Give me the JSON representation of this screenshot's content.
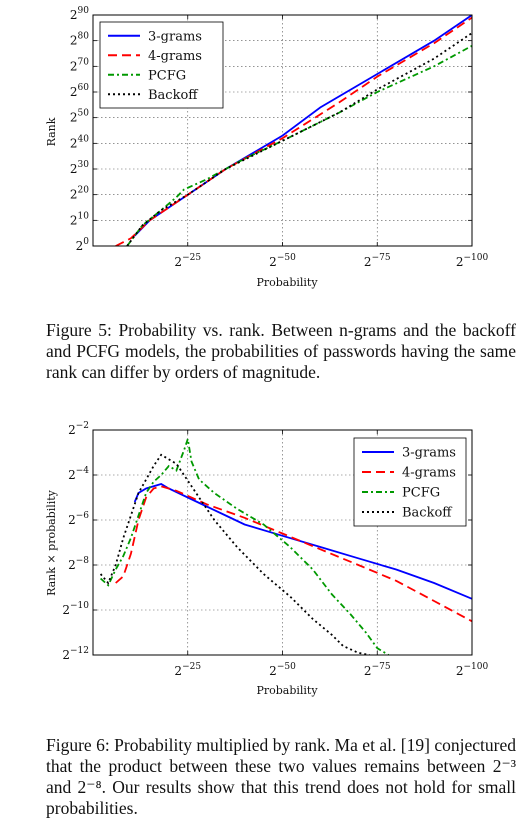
{
  "figure5": {
    "caption_label": "Figure 5:",
    "caption_text": "Probability vs. rank. Between n-grams and the backoff and PCFG models, the probabilities of passwords having the same rank can differ by orders of magnitude.",
    "chart_data": {
      "type": "line",
      "xlabel": "Probability",
      "ylabel": "Rank",
      "x_scale": "log2 (decreasing to the right)",
      "y_scale": "log2",
      "xlim_exponent": [
        0,
        -100
      ],
      "ylim_exponent": [
        0,
        90
      ],
      "x_ticks": [
        {
          "exp": -25,
          "base": "2",
          "sup": "−25"
        },
        {
          "exp": -50,
          "base": "2",
          "sup": "−50"
        },
        {
          "exp": -75,
          "base": "2",
          "sup": "−75"
        },
        {
          "exp": -100,
          "base": "2",
          "sup": "−100"
        }
      ],
      "y_ticks": [
        {
          "exp": 0,
          "base": "2",
          "sup": "0"
        },
        {
          "exp": 10,
          "base": "2",
          "sup": "10"
        },
        {
          "exp": 20,
          "base": "2",
          "sup": "20"
        },
        {
          "exp": 30,
          "base": "2",
          "sup": "30"
        },
        {
          "exp": 40,
          "base": "2",
          "sup": "40"
        },
        {
          "exp": 50,
          "base": "2",
          "sup": "50"
        },
        {
          "exp": 60,
          "base": "2",
          "sup": "60"
        },
        {
          "exp": 70,
          "base": "2",
          "sup": "70"
        },
        {
          "exp": 80,
          "base": "2",
          "sup": "80"
        },
        {
          "exp": 90,
          "base": "2",
          "sup": "90"
        }
      ],
      "grid": true,
      "legend_position": "top-left",
      "series": [
        {
          "name": "3-grams",
          "color": "#0000ff",
          "dash": "solid",
          "x": [
            -11,
            -15,
            -20,
            -25,
            -35,
            -50,
            -60,
            -75,
            -90,
            -100
          ],
          "y": [
            4,
            10,
            15,
            20,
            30,
            43,
            54,
            67,
            80,
            90
          ]
        },
        {
          "name": "4-grams",
          "color": "#ff0000",
          "dash": "dashed",
          "x": [
            -6,
            -10,
            -15,
            -25,
            -35,
            -50,
            -65,
            -75,
            -90,
            -100
          ],
          "y": [
            0,
            3,
            10,
            20,
            30,
            42,
            56,
            66,
            79,
            89
          ]
        },
        {
          "name": "PCFG",
          "color": "#009900",
          "dash": "dashdot",
          "x": [
            -9,
            -13,
            -18,
            -22,
            -24,
            -30,
            -40,
            -50,
            -65,
            -75,
            -90,
            -100
          ],
          "y": [
            0,
            8,
            14,
            19,
            22,
            26,
            34,
            41,
            52,
            60,
            70,
            78
          ]
        },
        {
          "name": "Backoff",
          "color": "#000000",
          "dash": "dotted",
          "x": [
            -9,
            -13,
            -18,
            -25,
            -35,
            -50,
            -65,
            -75,
            -90,
            -100
          ],
          "y": [
            0,
            8,
            14,
            20,
            30,
            41,
            52,
            61,
            73,
            83
          ]
        }
      ]
    }
  },
  "figure6": {
    "caption_label": "Figure 6:",
    "caption_text": "Probability multiplied by rank. Ma et al. [19] conjectured that the product between these two values remains between 2⁻³ and 2⁻⁸. Our results show that this trend does not hold for small probabilities.",
    "chart_data": {
      "type": "line",
      "xlabel": "Probability",
      "ylabel": "Rank × probability",
      "x_scale": "log2 (decreasing to the right)",
      "y_scale": "log2",
      "xlim_exponent": [
        0,
        -100
      ],
      "ylim_exponent": [
        -12,
        -2
      ],
      "x_ticks": [
        {
          "exp": -25,
          "base": "2",
          "sup": "−25"
        },
        {
          "exp": -50,
          "base": "2",
          "sup": "−50"
        },
        {
          "exp": -75,
          "base": "2",
          "sup": "−75"
        },
        {
          "exp": -100,
          "base": "2",
          "sup": "−100"
        }
      ],
      "y_ticks": [
        {
          "exp": -12,
          "base": "2",
          "sup": "−12"
        },
        {
          "exp": -10,
          "base": "2",
          "sup": "−10"
        },
        {
          "exp": -8,
          "base": "2",
          "sup": "−8"
        },
        {
          "exp": -6,
          "base": "2",
          "sup": "−6"
        },
        {
          "exp": -4,
          "base": "2",
          "sup": "−4"
        },
        {
          "exp": -2,
          "base": "2",
          "sup": "−2"
        }
      ],
      "grid": true,
      "legend_position": "top-right",
      "series": [
        {
          "name": "3-grams",
          "color": "#0000ff",
          "dash": "solid",
          "x": [
            -11,
            -12,
            -14,
            -16,
            -18,
            -20,
            -25,
            -30,
            -35,
            -40,
            -50,
            -60,
            -70,
            -80,
            -90,
            -100
          ],
          "y": [
            -5.2,
            -4.8,
            -4.6,
            -4.5,
            -4.4,
            -4.6,
            -5.0,
            -5.4,
            -5.8,
            -6.2,
            -6.7,
            -7.2,
            -7.7,
            -8.2,
            -8.8,
            -9.5
          ]
        },
        {
          "name": "4-grams",
          "color": "#ff0000",
          "dash": "dashed",
          "x": [
            -6,
            -8,
            -10,
            -12,
            -14,
            -16,
            -18,
            -22,
            -30,
            -40,
            -50,
            -60,
            -70,
            -80,
            -90,
            -100
          ],
          "y": [
            -8.8,
            -8.5,
            -7.5,
            -6.0,
            -5.0,
            -4.6,
            -4.5,
            -4.7,
            -5.3,
            -5.9,
            -6.6,
            -7.3,
            -8.0,
            -8.7,
            -9.6,
            -10.5
          ]
        },
        {
          "name": "PCFG",
          "color": "#009900",
          "dash": "dashdot",
          "x": [
            -2,
            -4,
            -6,
            -8,
            -10,
            -12,
            -14,
            -16,
            -18,
            -20,
            -22,
            -24,
            -25,
            -26,
            -28,
            -32,
            -38,
            -45,
            -52,
            -58,
            -63,
            -68,
            -72,
            -75,
            -78
          ],
          "y": [
            -8.6,
            -8.9,
            -8.2,
            -7.6,
            -6.8,
            -5.8,
            -4.8,
            -4.3,
            -4.0,
            -3.6,
            -3.8,
            -2.9,
            -2.4,
            -3.4,
            -4.2,
            -4.8,
            -5.5,
            -6.2,
            -7.2,
            -8.2,
            -9.3,
            -10.2,
            -11.0,
            -11.7,
            -12.0
          ]
        },
        {
          "name": "Backoff",
          "color": "#000000",
          "dash": "dotted",
          "x": [
            -2,
            -4,
            -6,
            -8,
            -10,
            -12,
            -14,
            -16,
            -18,
            -20,
            -22,
            -24,
            -28,
            -32,
            -38,
            -45,
            -52,
            -58,
            -63,
            -66,
            -70,
            -73
          ],
          "y": [
            -8.4,
            -8.8,
            -8.0,
            -6.8,
            -5.8,
            -4.8,
            -4.2,
            -3.6,
            -3.1,
            -3.3,
            -3.5,
            -4.0,
            -5.0,
            -6.0,
            -7.2,
            -8.4,
            -9.4,
            -10.4,
            -11.1,
            -11.6,
            -11.9,
            -12.0
          ]
        }
      ]
    }
  }
}
